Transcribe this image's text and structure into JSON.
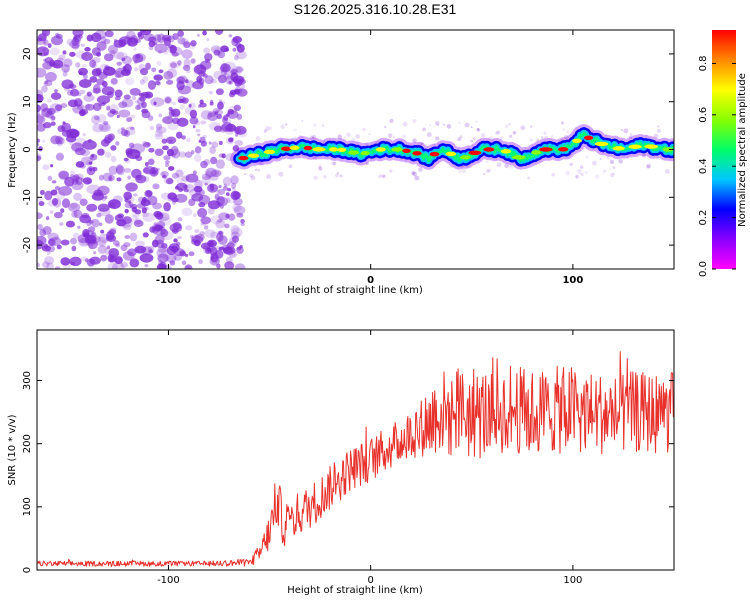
{
  "title": "S126.2025.316.10.28.E31",
  "colors": {
    "snr_line": "#e8312b",
    "noise_purple": "#7f2bd6",
    "axis": "#000000"
  },
  "colormap": [
    "#ff00ff",
    "#8800ff",
    "#0000ff",
    "#00c8ff",
    "#00ff66",
    "#88ff00",
    "#ffff00",
    "#ff8800",
    "#ff0000"
  ],
  "chart_data": [
    {
      "type": "heatmap",
      "title": "S126.2025.316.10.28.E31",
      "xlabel": "Height of straight line (km)",
      "ylabel": "Frequency (Hz)",
      "xlim": [
        -165,
        150
      ],
      "ylim": [
        -25,
        25
      ],
      "x_ticks": [
        -100,
        0,
        100
      ],
      "x_tick_labels": [
        "-100",
        "0",
        "100"
      ],
      "y_ticks": [
        -20,
        -10,
        0,
        10,
        20
      ],
      "y_tick_labels": [
        "-20",
        "-10",
        "0",
        "10",
        "20"
      ],
      "noise_region": [
        -165,
        -63
      ],
      "signal_trace": {
        "x": [
          -65,
          -55,
          -45,
          -35,
          -25,
          -15,
          -5,
          5,
          15,
          25,
          28,
          35,
          45,
          55,
          65,
          75,
          85,
          95,
          100,
          105,
          115,
          125,
          135,
          145,
          150
        ],
        "y": [
          -2,
          -1,
          0,
          0.5,
          0,
          0,
          -1,
          0,
          0,
          -1,
          -2,
          0,
          -2,
          0,
          0,
          -2,
          0,
          0,
          1,
          3,
          1,
          0,
          1,
          0,
          0
        ]
      },
      "colorbar": {
        "label": "Normalized spectral amplitude",
        "range": [
          0,
          0.93
        ],
        "ticks": [
          0.0,
          0.2,
          0.4,
          0.6,
          0.8
        ],
        "tick_labels": [
          "0.0",
          "0.2",
          "0.4",
          "0.6",
          "0.8"
        ]
      }
    },
    {
      "type": "line",
      "xlabel": "Height of straight line (km)",
      "ylabel": "SNR (10 * v/v)",
      "xlim": [
        -165,
        150
      ],
      "ylim": [
        0,
        380
      ],
      "x_ticks": [
        -100,
        0,
        100
      ],
      "x_tick_labels": [
        "-100",
        "0",
        "100"
      ],
      "y_ticks": [
        0,
        100,
        200,
        300
      ],
      "y_tick_labels": [
        "0",
        "100",
        "200",
        "300"
      ],
      "series": [
        {
          "name": "SNR",
          "x": [
            -165,
            -140,
            -110,
            -80,
            -60,
            -55,
            -50,
            -46,
            -43,
            -40,
            -30,
            -20,
            -10,
            0,
            10,
            20,
            25,
            30,
            33,
            35,
            40,
            45,
            50,
            60,
            70,
            80,
            90,
            100,
            110,
            120,
            130,
            140,
            150
          ],
          "y": [
            10,
            10,
            10,
            10,
            12,
            25,
            60,
            110,
            70,
            80,
            100,
            130,
            160,
            175,
            195,
            215,
            230,
            235,
            255,
            250,
            245,
            255,
            245,
            250,
            255,
            248,
            252,
            255,
            250,
            245,
            250,
            248,
            250
          ],
          "spread": [
            4,
            4,
            4,
            4,
            6,
            15,
            30,
            40,
            35,
            35,
            35,
            35,
            35,
            35,
            35,
            40,
            50,
            60,
            70,
            70,
            70,
            75,
            75,
            70,
            70,
            70,
            70,
            70,
            65,
            65,
            65,
            65,
            65
          ]
        }
      ]
    }
  ]
}
